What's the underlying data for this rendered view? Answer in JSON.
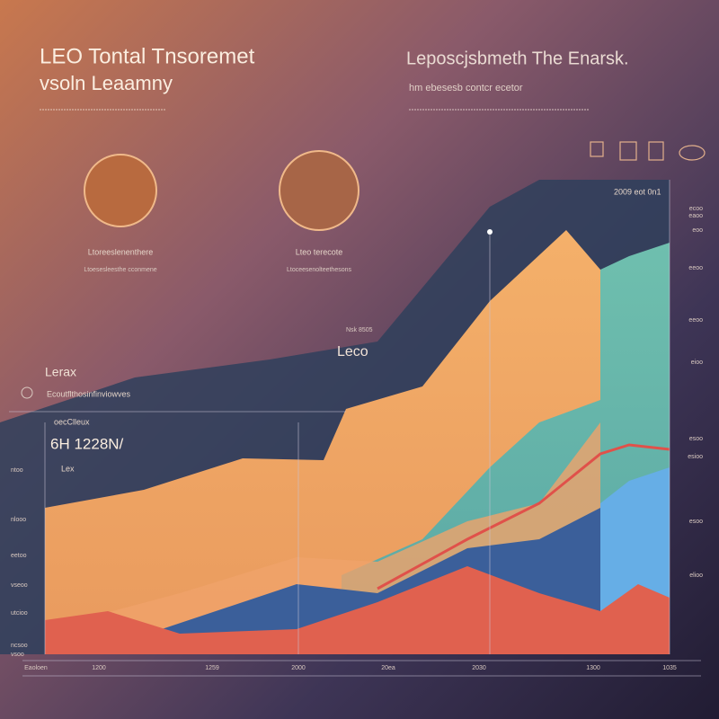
{
  "header": {
    "title_line1": "LEO Tontal Tnsoremet",
    "title_line2": "vsoln Leaamny",
    "right_title": "Leposcjsbmeth The Enarsk.",
    "right_subtitle": "hm ebesesb contcr ecetor"
  },
  "cards": [
    {
      "label": "Ltoreeslenenthere",
      "caption": "Ltoesesleesthe cconmene"
    },
    {
      "label": "Lteo terecote",
      "caption": "Ltoceesenolteethesons"
    }
  ],
  "annotations": {
    "left_label": "Lerax",
    "left_caption": "Ecoutflthosinfinviowves",
    "center_label": "Leco",
    "center_small": "Nsk 8505",
    "big_number": "6H 1228N/",
    "panel_title": "oecClleux",
    "panel_small": "Lex",
    "right_top": "2009 eot 0n1"
  },
  "left_axis": [
    "ntoo",
    "nlooo",
    "eetoo",
    "vseoo",
    "utcioo",
    "ncsoo",
    "vsoo"
  ],
  "right_axis": [
    "ecoo",
    "eaoo",
    "eoo",
    "eeoo",
    "eeoo",
    "eioo",
    "esoo",
    "esioo",
    "esoo",
    "elioo"
  ],
  "bottom_axis": [
    "Eaoloen",
    "1200",
    "1259",
    "2000",
    "20ea",
    "2030",
    "1300",
    "1035"
  ]
}
